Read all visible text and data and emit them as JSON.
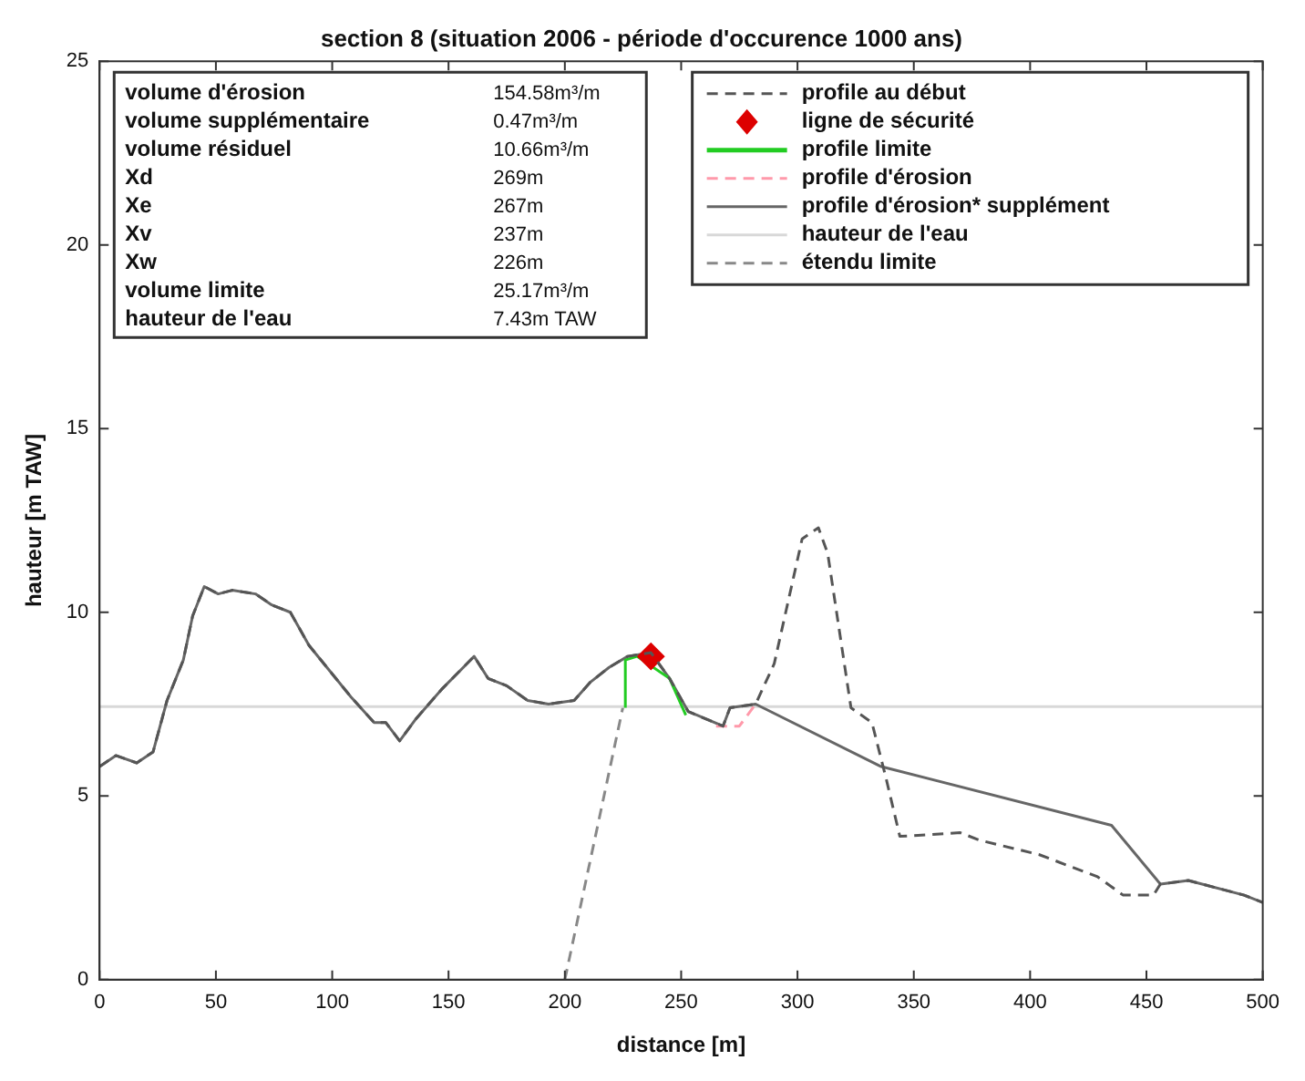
{
  "chart_data": {
    "type": "line",
    "title": "section 8 (situation 2006 - période d'occurence 1000 ans)",
    "xlabel": "distance [m]",
    "ylabel": "hauteur [m TAW]",
    "xlim": [
      0,
      500
    ],
    "xticks": [
      0,
      50,
      100,
      150,
      200,
      250,
      300,
      350,
      400,
      450,
      500
    ],
    "ylim": [
      0,
      25
    ],
    "yticks": [
      0,
      5,
      10,
      15,
      20,
      25
    ],
    "grid": false,
    "legend": "top right",
    "annotations": [
      "volume d'érosion",
      "154.58m³/m",
      "volume supplémentaire",
      "0.47m³/m",
      "volume résiduel",
      "10.66m³/m",
      "Xd",
      "269m",
      "Xe",
      "267m",
      "Xv",
      "237m",
      "Xw",
      "226m",
      "volume limite",
      "25.17m³/m",
      "hauteur de l'eau",
      "7.43m TAW"
    ],
    "series": [
      {
        "name": "profile au début",
        "type": "line",
        "color": "#555555",
        "line_style": "dashed",
        "marker": "none",
        "x": [
          0,
          7,
          16,
          23,
          29,
          36,
          40,
          45,
          51,
          57,
          67,
          74,
          82,
          90,
          99,
          108,
          118,
          123,
          129,
          136,
          147,
          161,
          167,
          175,
          184,
          193,
          204,
          211,
          219,
          227,
          237,
          245,
          253,
          268,
          271,
          282,
          290,
          302,
          309,
          313,
          323,
          332,
          338,
          344,
          370,
          378,
          404,
          429,
          440,
          453,
          456,
          468,
          492,
          500
        ],
        "values": [
          5.8,
          6.1,
          5.9,
          6.2,
          7.6,
          8.7,
          9.9,
          10.7,
          10.5,
          10.6,
          10.5,
          10.2,
          10.0,
          9.1,
          8.4,
          7.7,
          7.0,
          7.0,
          6.5,
          7.1,
          7.9,
          8.8,
          8.2,
          8.0,
          7.6,
          7.5,
          7.6,
          8.1,
          8.5,
          8.8,
          8.9,
          8.2,
          7.3,
          6.9,
          7.4,
          7.5,
          8.6,
          12.0,
          12.3,
          11.6,
          7.4,
          7.0,
          5.5,
          3.9,
          4.0,
          3.8,
          3.4,
          2.8,
          2.3,
          2.3,
          2.6,
          2.7,
          2.3,
          2.1
        ]
      },
      {
        "name": "ligne de sécurité",
        "type": "scatter",
        "color": "#dd0000",
        "marker": "diamond",
        "x": [
          237
        ],
        "values": [
          8.8
        ]
      },
      {
        "name": "profile limite",
        "type": "line",
        "color": "#22cc22",
        "line_style": "solid",
        "marker": "none",
        "x": [
          226,
          226,
          231,
          245,
          252
        ],
        "values": [
          7.4,
          8.7,
          8.8,
          8.2,
          7.2
        ]
      },
      {
        "name": "profile d'érosion",
        "type": "line",
        "color": "#ff99aa",
        "line_style": "dashed",
        "marker": "none",
        "x": [
          265,
          275,
          282
        ],
        "values": [
          6.9,
          6.9,
          7.5
        ]
      },
      {
        "name": "profile d'érosion* supplément",
        "type": "line",
        "color": "#666666",
        "line_style": "solid",
        "marker": "none",
        "x": [
          0,
          7,
          16,
          23,
          29,
          36,
          40,
          45,
          51,
          57,
          67,
          74,
          82,
          90,
          99,
          108,
          118,
          123,
          129,
          136,
          147,
          161,
          167,
          175,
          184,
          193,
          204,
          211,
          219,
          227,
          237,
          245,
          253,
          268,
          271,
          282,
          336,
          435,
          456,
          468,
          492,
          500
        ],
        "values": [
          5.8,
          6.1,
          5.9,
          6.2,
          7.6,
          8.7,
          9.9,
          10.7,
          10.5,
          10.6,
          10.5,
          10.2,
          10.0,
          9.1,
          8.4,
          7.7,
          7.0,
          7.0,
          6.5,
          7.1,
          7.9,
          8.8,
          8.2,
          8.0,
          7.6,
          7.5,
          7.6,
          8.1,
          8.5,
          8.8,
          8.9,
          8.2,
          7.3,
          6.9,
          7.4,
          7.5,
          5.8,
          4.2,
          2.6,
          2.7,
          2.3,
          2.1
        ]
      },
      {
        "name": "hauteur de l'eau",
        "type": "line",
        "color": "#d8d8d8",
        "line_style": "solid",
        "marker": "none",
        "x": [
          0,
          500
        ],
        "values": [
          7.43,
          7.43
        ]
      },
      {
        "name": "étendu limite",
        "type": "line",
        "color": "#888888",
        "line_style": "dashed",
        "marker": "none",
        "x": [
          200,
          225
        ],
        "values": [
          0,
          7.43
        ]
      }
    ]
  }
}
